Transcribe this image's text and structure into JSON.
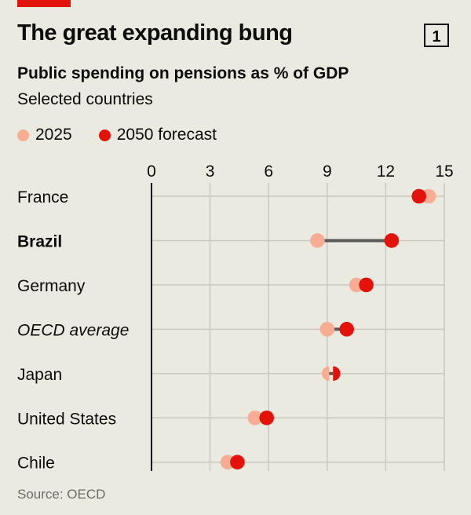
{
  "header": {
    "title": "The great expanding bung",
    "chart_number": "1",
    "subtitle": "Public spending on pensions as % of GDP",
    "subtitle2": "Selected countries"
  },
  "source": "Source: OECD",
  "colors": {
    "2025": "#f6ad93",
    "2050": "#e3120b",
    "connector": "#5a5a5a",
    "background": "#ebeae0"
  },
  "chart_data": {
    "type": "dot-plot",
    "title": "Public spending on pensions as % of GDP",
    "xlim": [
      0,
      15
    ],
    "ticks": [
      "0",
      "3",
      "6",
      "9",
      "12",
      "15"
    ],
    "tick_values": [
      0,
      3,
      6,
      9,
      12,
      15
    ],
    "legend_placement": "top-left",
    "grid": true,
    "categories": [
      {
        "label": "France",
        "style": "normal"
      },
      {
        "label": "Brazil",
        "style": "bold"
      },
      {
        "label": "Germany",
        "style": "normal"
      },
      {
        "label": "OECD average",
        "style": "italic"
      },
      {
        "label": "Japan",
        "style": "normal"
      },
      {
        "label": "United States",
        "style": "normal"
      },
      {
        "label": "Chile",
        "style": "normal"
      }
    ],
    "series": [
      {
        "name": "2025",
        "values": [
          14.2,
          8.5,
          10.5,
          9.0,
          9.1,
          5.3,
          3.9
        ]
      },
      {
        "name": "2050 forecast",
        "values": [
          13.7,
          12.3,
          11.0,
          10.0,
          9.3,
          5.9,
          4.4
        ]
      }
    ]
  }
}
